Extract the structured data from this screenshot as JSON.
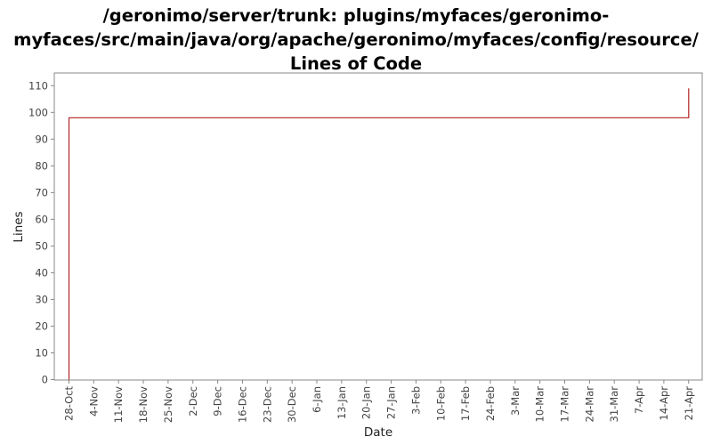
{
  "chart_data": {
    "type": "line",
    "title_lines": [
      "/geronimo/server/trunk: plugins/myfaces/geronimo-",
      "myfaces/src/main/java/org/apache/geronimo/myfaces/config/resource/",
      "Lines of Code"
    ],
    "xlabel": "Date",
    "ylabel": "Lines",
    "ylim": [
      0,
      113
    ],
    "yticks": [
      0,
      10,
      20,
      30,
      40,
      50,
      60,
      70,
      80,
      90,
      100,
      110
    ],
    "xticks": [
      "28-Oct",
      "4-Nov",
      "11-Nov",
      "18-Nov",
      "25-Nov",
      "2-Dec",
      "9-Dec",
      "16-Dec",
      "23-Dec",
      "30-Dec",
      "6-Jan",
      "13-Jan",
      "20-Jan",
      "27-Jan",
      "3-Feb",
      "10-Feb",
      "17-Feb",
      "24-Feb",
      "3-Mar",
      "10-Mar",
      "17-Mar",
      "24-Mar",
      "31-Mar",
      "7-Apr",
      "14-Apr",
      "21-Apr"
    ],
    "grid": false,
    "series": [
      {
        "color": "#b22222",
        "step": true,
        "points": [
          {
            "x": "28-Oct",
            "y": 0
          },
          {
            "x": "28-Oct",
            "y": 98
          },
          {
            "x": "21-Apr",
            "y": 98
          },
          {
            "x": "21-Apr",
            "y": 109
          }
        ]
      }
    ]
  }
}
